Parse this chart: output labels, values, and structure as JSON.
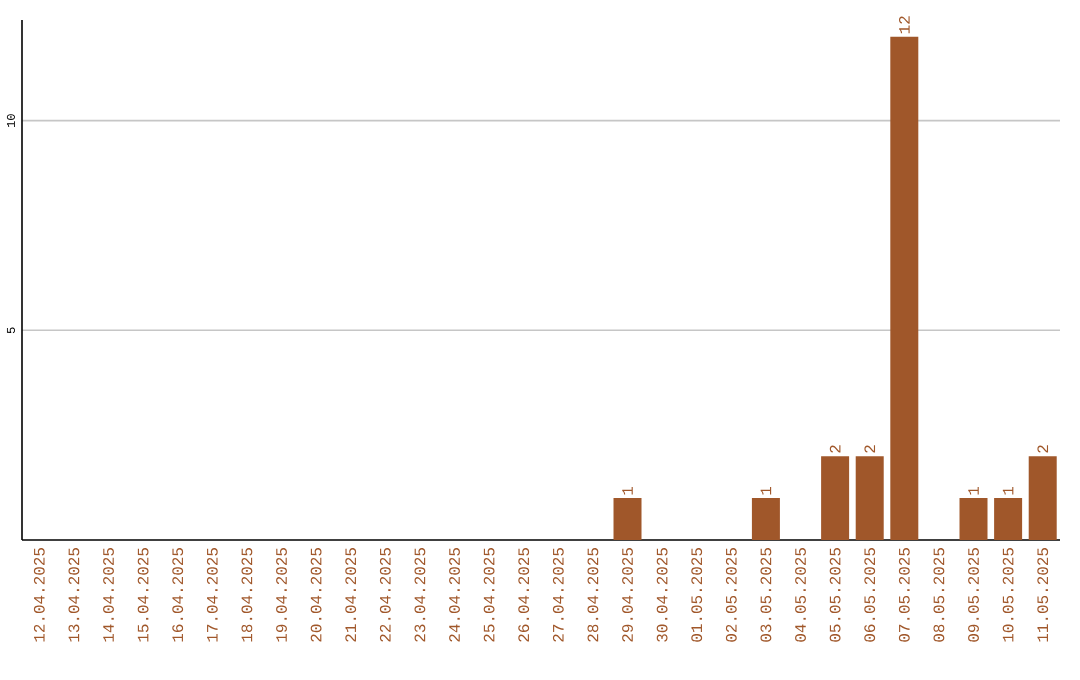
{
  "chart_data": {
    "type": "bar",
    "categories": [
      "12.04.2025",
      "13.04.2025",
      "14.04.2025",
      "15.04.2025",
      "16.04.2025",
      "17.04.2025",
      "18.04.2025",
      "19.04.2025",
      "20.04.2025",
      "21.04.2025",
      "22.04.2025",
      "23.04.2025",
      "24.04.2025",
      "25.04.2025",
      "26.04.2025",
      "27.04.2025",
      "28.04.2025",
      "29.04.2025",
      "30.04.2025",
      "01.05.2025",
      "02.05.2025",
      "03.05.2025",
      "04.05.2025",
      "05.05.2025",
      "06.05.2025",
      "07.05.2025",
      "08.05.2025",
      "09.05.2025",
      "10.05.2025",
      "11.05.2025"
    ],
    "values": [
      0,
      0,
      0,
      0,
      0,
      0,
      0,
      0,
      0,
      0,
      0,
      0,
      0,
      0,
      0,
      0,
      0,
      1,
      0,
      0,
      0,
      1,
      0,
      2,
      2,
      12,
      0,
      1,
      1,
      2
    ],
    "value_labels": [
      null,
      null,
      null,
      null,
      null,
      null,
      null,
      null,
      null,
      null,
      null,
      null,
      null,
      null,
      null,
      null,
      null,
      "1",
      null,
      null,
      null,
      "1",
      null,
      "2",
      "2",
      "12",
      null,
      "1",
      "1",
      "2"
    ],
    "color": "#a0572a",
    "ylim": [
      0,
      12.4
    ],
    "yticks": [
      5,
      10
    ],
    "grid": "y"
  }
}
